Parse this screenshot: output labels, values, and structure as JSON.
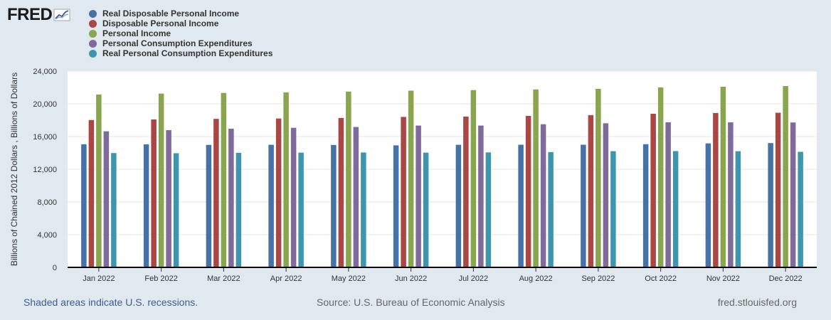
{
  "logo": {
    "text": "FRED"
  },
  "legend": [
    {
      "label": "Real Disposable Personal Income",
      "color": "#4572a7"
    },
    {
      "label": "Disposable Personal Income",
      "color": "#aa4643"
    },
    {
      "label": "Personal Income",
      "color": "#89a54e"
    },
    {
      "label": "Personal Consumption Expenditures",
      "color": "#80699b"
    },
    {
      "label": "Real Personal Consumption Expenditures",
      "color": "#3d96ae"
    }
  ],
  "chart_data": {
    "type": "bar",
    "title": "",
    "xlabel": "",
    "ylabel": "Billions of Chained 2012 Dollars , Billions of Dollars",
    "ylim": [
      0,
      24000
    ],
    "yticks": [
      "0",
      "4,000",
      "8,000",
      "12,000",
      "16,000",
      "20,000",
      "24,000"
    ],
    "grid": true,
    "legend_position": "top-left",
    "categories": [
      "Jan 2022",
      "Feb 2022",
      "Mar 2022",
      "Apr 2022",
      "May 2022",
      "Jun 2022",
      "Jul 2022",
      "Aug 2022",
      "Sep 2022",
      "Oct 2022",
      "Nov 2022",
      "Dec 2022"
    ],
    "series": [
      {
        "name": "Real Disposable Personal Income",
        "color": "#4572a7",
        "values": [
          15050,
          15040,
          14980,
          14990,
          14970,
          14920,
          14990,
          15000,
          15000,
          15060,
          15160,
          15200
        ]
      },
      {
        "name": "Disposable Personal Income",
        "color": "#aa4643",
        "values": [
          18020,
          18090,
          18160,
          18200,
          18270,
          18400,
          18440,
          18520,
          18620,
          18780,
          18880,
          18910
        ]
      },
      {
        "name": "Personal Income",
        "color": "#89a54e",
        "values": [
          21140,
          21250,
          21330,
          21400,
          21500,
          21610,
          21680,
          21760,
          21830,
          22000,
          22090,
          22170
        ]
      },
      {
        "name": "Personal Consumption Expenditures",
        "color": "#80699b",
        "values": [
          16640,
          16780,
          16960,
          17070,
          17170,
          17340,
          17340,
          17500,
          17620,
          17740,
          17740,
          17720
        ]
      },
      {
        "name": "Real Personal Consumption Expenditures",
        "color": "#3d96ae",
        "values": [
          13980,
          13960,
          14010,
          14030,
          14050,
          14030,
          14060,
          14100,
          14210,
          14220,
          14210,
          14130
        ]
      }
    ]
  },
  "footer": {
    "recessions_note": "Shaded areas indicate U.S. recessions.",
    "source": "Source: U.S. Bureau of Economic Analysis",
    "site": "fred.stlouisfed.org"
  }
}
